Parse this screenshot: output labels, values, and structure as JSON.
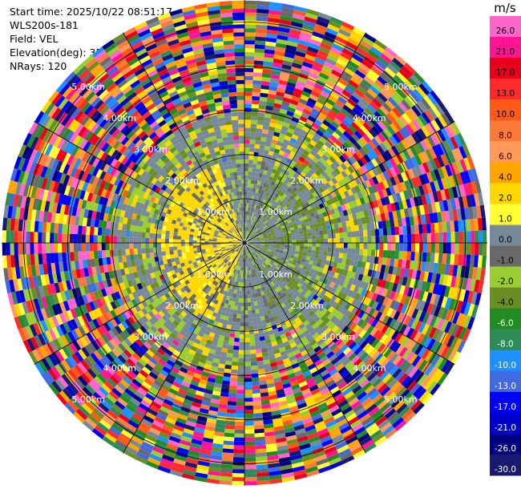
{
  "info": {
    "start_time": "Start time: 2025/10/22 08:51:17",
    "instrument": "WLS200s-181",
    "field": "Field: VEL",
    "elevation": "Elevation(deg): 35.00",
    "nrays": "NRays: 120"
  },
  "chart_data": {
    "type": "heatmap",
    "projection": "polar PPI",
    "field": "VEL",
    "nrays": 120,
    "range_max_km": 5.5,
    "grid": true,
    "range_ring_labels": [
      "1.00km",
      "2.00km",
      "3.00km",
      "4.00km",
      "5.00km"
    ],
    "colorbar": {
      "unit": "m/s",
      "position": "right",
      "tick_labels": [
        "26.0",
        "21.0",
        "17.0",
        "13.0",
        "10.0",
        "8.0",
        "6.0",
        "4.0",
        "2.0",
        "1.0",
        "0.0",
        "-1.0",
        "-2.0",
        "-4.0",
        "-6.0",
        "-8.0",
        "-10.0",
        "-13.0",
        "-17.0",
        "-21.0",
        "-26.0",
        "-30.0"
      ],
      "colors": [
        "#ff66cc",
        "#ff1493",
        "#e8001c",
        "#ff2a2a",
        "#ff5a1a",
        "#ff7a3a",
        "#ff9a5a",
        "#ffa500",
        "#ffd700",
        "#ffff33",
        "#778899",
        "#696969",
        "#9acd32",
        "#6b8e23",
        "#228b22",
        "#2e8b57",
        "#1e90ff",
        "#4169e1",
        "#0000ff",
        "#0000cd",
        "#000080",
        "#191970"
      ]
    }
  }
}
